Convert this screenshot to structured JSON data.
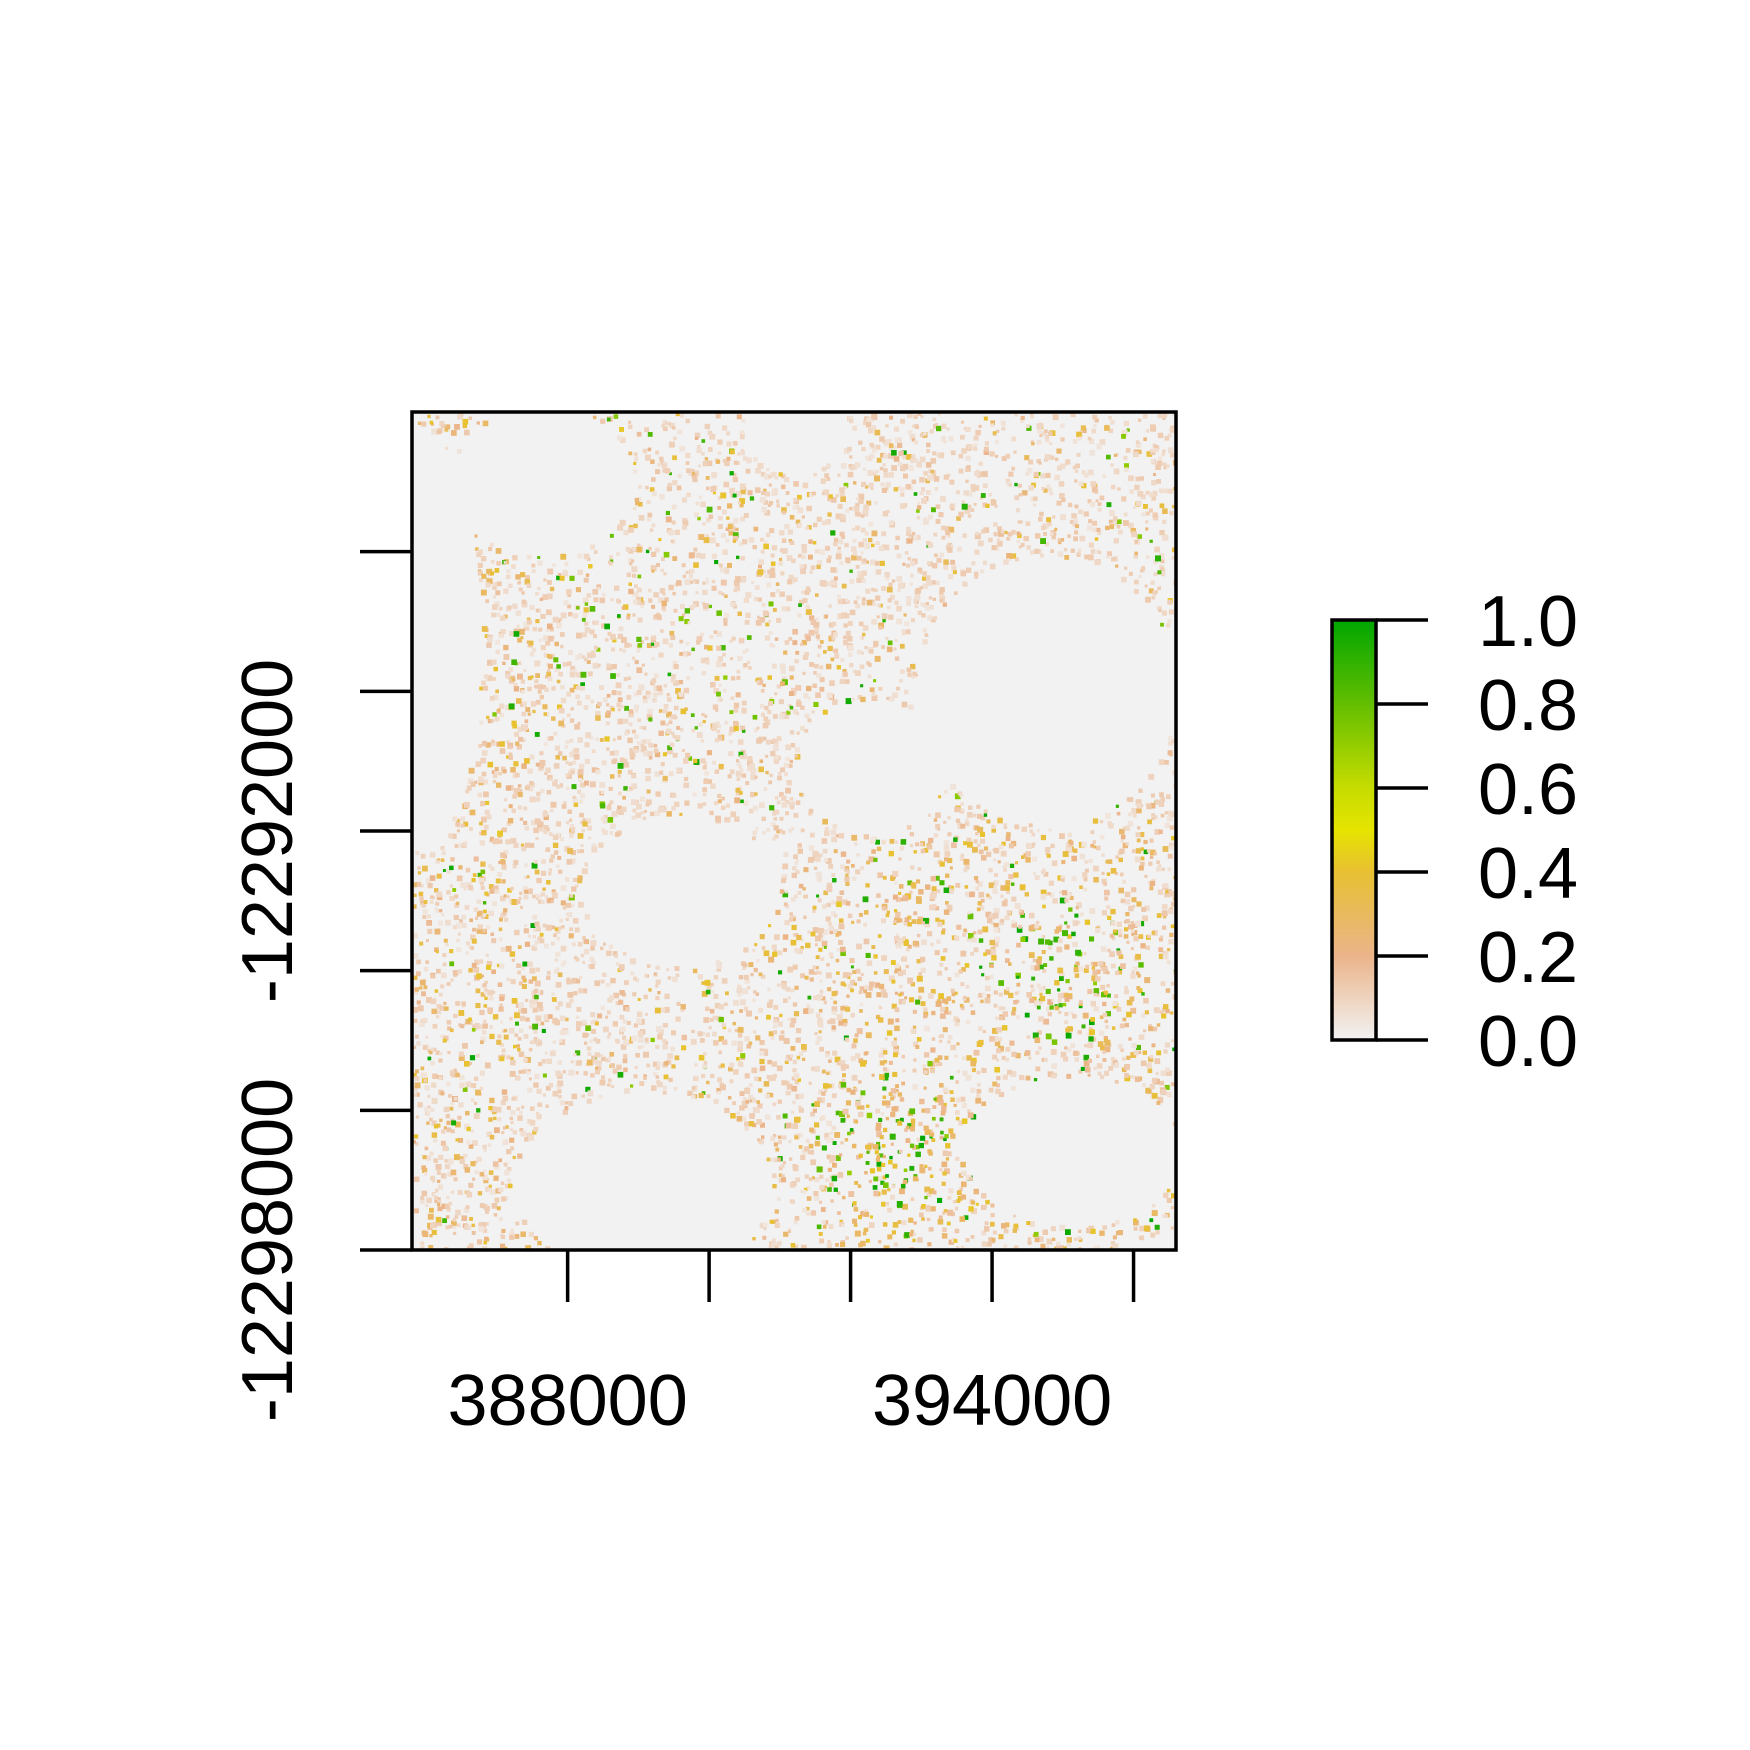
{
  "chart_data": {
    "type": "heatmap",
    "title": "",
    "xlabel": "",
    "ylabel": "",
    "xlim": [
      385800,
      396600
    ],
    "ylim": [
      -12298000,
      -12286000
    ],
    "x_ticks": [
      388000,
      390000,
      392000,
      394000,
      396000
    ],
    "x_tick_labels": [
      "388000",
      "",
      "",
      "394000",
      ""
    ],
    "y_ticks": [
      -12298000,
      -12296000,
      -12294000,
      -12292000,
      -12290000,
      -12288000
    ],
    "y_tick_labels": [
      "-12298000",
      "",
      "",
      "-12292000",
      "",
      ""
    ],
    "value_range": [
      0,
      1
    ],
    "background_color": "#f2f2f2",
    "colorscale": [
      {
        "value": 0.0,
        "color": "#f2f2f2"
      },
      {
        "value": 0.2,
        "color": "#ebb48a"
      },
      {
        "value": 0.4,
        "color": "#e8c032"
      },
      {
        "value": 0.5,
        "color": "#e6e400"
      },
      {
        "value": 0.6,
        "color": "#c6dc00"
      },
      {
        "value": 0.8,
        "color": "#63be00"
      },
      {
        "value": 1.0,
        "color": "#00a600"
      }
    ],
    "legend": {
      "position": "right",
      "ticks": [
        0.0,
        0.2,
        0.4,
        0.6,
        0.8,
        1.0
      ],
      "tick_labels": [
        "0.0",
        "0.2",
        "0.4",
        "0.6",
        "0.8",
        "1.0"
      ]
    }
  }
}
